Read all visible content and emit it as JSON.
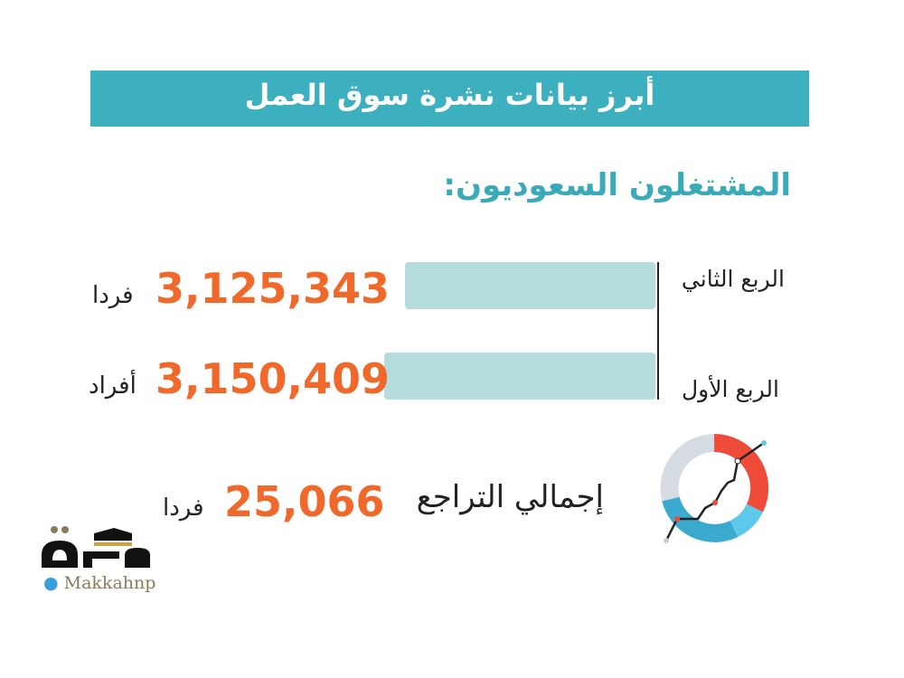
{
  "header": {
    "title": "أبرز بيانات نشرة سوق العمل"
  },
  "subtitle": "المشتغلون السعوديون:",
  "chart_data": {
    "type": "bar",
    "orientation": "horizontal",
    "categories": [
      "الربع الثاني",
      "الربع الأول"
    ],
    "values": [
      3125343,
      3150409
    ],
    "value_labels": [
      "3,125,343",
      "3,150,409"
    ],
    "units": [
      "فردا",
      "أفراد"
    ],
    "colors": {
      "bar": "#b5dcdc",
      "value": "#f0692b",
      "banner": "#3db0bf"
    }
  },
  "total": {
    "label": "إجمالي التراجع",
    "value": "25,066",
    "unit": "فردا"
  },
  "logo": {
    "text": "مكة",
    "handle": "Makkahnp",
    "icon": "twitter-bird-icon"
  }
}
